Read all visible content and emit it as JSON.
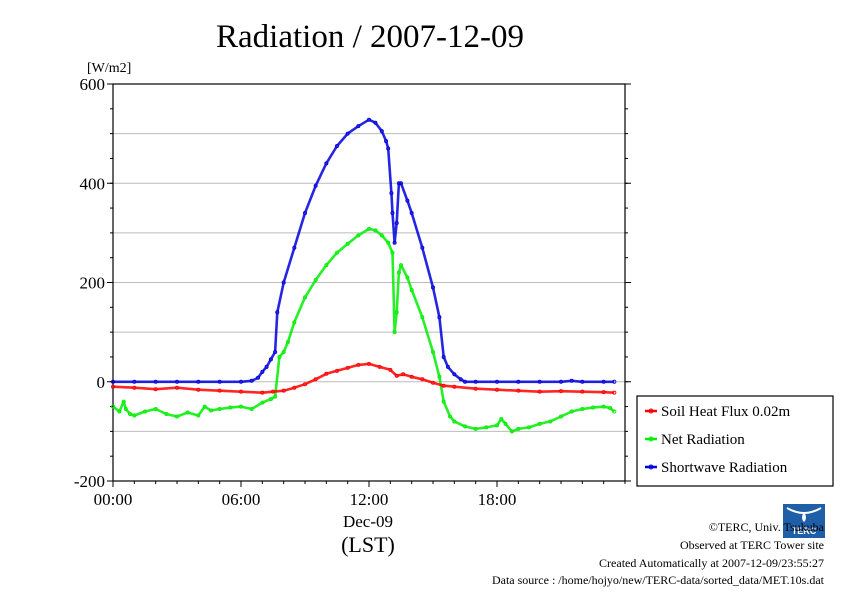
{
  "chart_data": {
    "type": "line",
    "title": "Radiation / 2007-12-09",
    "ylabel": "[W/m2]",
    "ylim": [
      -200,
      600
    ],
    "yticks": [
      -200,
      0,
      200,
      400,
      600
    ],
    "xlim": [
      0,
      24
    ],
    "xticks": [
      {
        "value": 0,
        "label": "00:00"
      },
      {
        "value": 6,
        "label": "06:00"
      },
      {
        "value": 12,
        "label": "12:00"
      },
      {
        "value": 18,
        "label": "18:00"
      }
    ],
    "xlabel_date": "Dec-09",
    "xlabel_unit": "(LST)",
    "grid": "horizontal",
    "legend_position": "right",
    "series": [
      {
        "name": "Soil Heat Flux 0.02m",
        "color": "#ff0000",
        "points": [
          [
            0,
            -10
          ],
          [
            1,
            -12
          ],
          [
            2,
            -15
          ],
          [
            3,
            -12
          ],
          [
            4,
            -16
          ],
          [
            5,
            -18
          ],
          [
            6,
            -20
          ],
          [
            7,
            -22
          ],
          [
            7.5,
            -20
          ],
          [
            8,
            -18
          ],
          [
            8.5,
            -12
          ],
          [
            9,
            -5
          ],
          [
            9.5,
            5
          ],
          [
            10,
            16
          ],
          [
            10.5,
            22
          ],
          [
            11,
            28
          ],
          [
            11.5,
            34
          ],
          [
            12,
            36
          ],
          [
            12.5,
            30
          ],
          [
            13,
            24
          ],
          [
            13.3,
            12
          ],
          [
            13.6,
            15
          ],
          [
            14,
            10
          ],
          [
            14.5,
            5
          ],
          [
            15,
            -2
          ],
          [
            15.5,
            -8
          ],
          [
            16,
            -10
          ],
          [
            17,
            -14
          ],
          [
            18,
            -16
          ],
          [
            19,
            -18
          ],
          [
            20,
            -20
          ],
          [
            21,
            -19
          ],
          [
            22,
            -20
          ],
          [
            23,
            -21
          ],
          [
            23.5,
            -22
          ]
        ]
      },
      {
        "name": "Net Radiation",
        "color": "#00ee00",
        "points": [
          [
            0,
            -50
          ],
          [
            0.3,
            -60
          ],
          [
            0.5,
            -40
          ],
          [
            0.6,
            -55
          ],
          [
            0.8,
            -65
          ],
          [
            1,
            -68
          ],
          [
            1.5,
            -60
          ],
          [
            2,
            -55
          ],
          [
            2.5,
            -65
          ],
          [
            3,
            -70
          ],
          [
            3.5,
            -62
          ],
          [
            4,
            -68
          ],
          [
            4.3,
            -50
          ],
          [
            4.6,
            -58
          ],
          [
            5,
            -55
          ],
          [
            5.5,
            -52
          ],
          [
            6,
            -50
          ],
          [
            6.5,
            -55
          ],
          [
            7,
            -42
          ],
          [
            7.4,
            -35
          ],
          [
            7.6,
            -30
          ],
          [
            7.8,
            50
          ],
          [
            8,
            60
          ],
          [
            8.2,
            80
          ],
          [
            8.5,
            120
          ],
          [
            9,
            170
          ],
          [
            9.5,
            205
          ],
          [
            10,
            235
          ],
          [
            10.5,
            260
          ],
          [
            11,
            278
          ],
          [
            11.5,
            295
          ],
          [
            12,
            308
          ],
          [
            12.3,
            305
          ],
          [
            12.6,
            295
          ],
          [
            12.9,
            280
          ],
          [
            13.1,
            260
          ],
          [
            13.2,
            100
          ],
          [
            13.3,
            140
          ],
          [
            13.4,
            220
          ],
          [
            13.5,
            235
          ],
          [
            13.8,
            210
          ],
          [
            14,
            185
          ],
          [
            14.5,
            130
          ],
          [
            15,
            60
          ],
          [
            15.3,
            10
          ],
          [
            15.5,
            -40
          ],
          [
            15.8,
            -70
          ],
          [
            16,
            -80
          ],
          [
            16.5,
            -90
          ],
          [
            17,
            -95
          ],
          [
            17.5,
            -92
          ],
          [
            18,
            -88
          ],
          [
            18.2,
            -75
          ],
          [
            18.4,
            -85
          ],
          [
            18.7,
            -100
          ],
          [
            19,
            -95
          ],
          [
            19.5,
            -92
          ],
          [
            20,
            -85
          ],
          [
            20.5,
            -80
          ],
          [
            21,
            -70
          ],
          [
            21.5,
            -60
          ],
          [
            22,
            -55
          ],
          [
            22.5,
            -52
          ],
          [
            23,
            -50
          ],
          [
            23.3,
            -53
          ],
          [
            23.5,
            -60
          ]
        ]
      },
      {
        "name": "Shortwave Radiation",
        "color": "#0000dd",
        "points": [
          [
            0,
            0
          ],
          [
            1,
            0
          ],
          [
            2,
            0
          ],
          [
            3,
            0
          ],
          [
            4,
            0
          ],
          [
            5,
            0
          ],
          [
            6,
            0
          ],
          [
            6.5,
            2
          ],
          [
            6.8,
            8
          ],
          [
            7,
            20
          ],
          [
            7.2,
            30
          ],
          [
            7.4,
            45
          ],
          [
            7.6,
            60
          ],
          [
            7.7,
            140
          ],
          [
            8,
            200
          ],
          [
            8.5,
            270
          ],
          [
            9,
            340
          ],
          [
            9.5,
            395
          ],
          [
            10,
            440
          ],
          [
            10.5,
            475
          ],
          [
            11,
            500
          ],
          [
            11.5,
            515
          ],
          [
            12,
            528
          ],
          [
            12.3,
            522
          ],
          [
            12.6,
            505
          ],
          [
            12.8,
            485
          ],
          [
            12.9,
            470
          ],
          [
            13.05,
            380
          ],
          [
            13.1,
            340
          ],
          [
            13.2,
            280
          ],
          [
            13.3,
            320
          ],
          [
            13.4,
            400
          ],
          [
            13.5,
            400
          ],
          [
            13.8,
            365
          ],
          [
            14,
            340
          ],
          [
            14.5,
            270
          ],
          [
            15,
            190
          ],
          [
            15.3,
            130
          ],
          [
            15.5,
            50
          ],
          [
            15.7,
            30
          ],
          [
            16,
            15
          ],
          [
            16.3,
            5
          ],
          [
            16.5,
            0
          ],
          [
            17,
            0
          ],
          [
            18,
            0
          ],
          [
            19,
            0
          ],
          [
            20,
            0
          ],
          [
            21,
            0
          ],
          [
            21.5,
            2
          ],
          [
            22,
            0
          ],
          [
            23,
            0
          ],
          [
            23.5,
            0
          ]
        ]
      }
    ]
  },
  "footer": {
    "copyright": "©TERC, Univ. Tsukuba",
    "site": "Observed at TERC Tower site",
    "created": "Created Automatically at 2007-12-09/23:55:27",
    "source": "Data source : /home/hojyo/new/TERC-data/sorted_data/MET.10s.dat"
  },
  "logo": {
    "text": "TERC",
    "color": "#1f5fa8"
  }
}
